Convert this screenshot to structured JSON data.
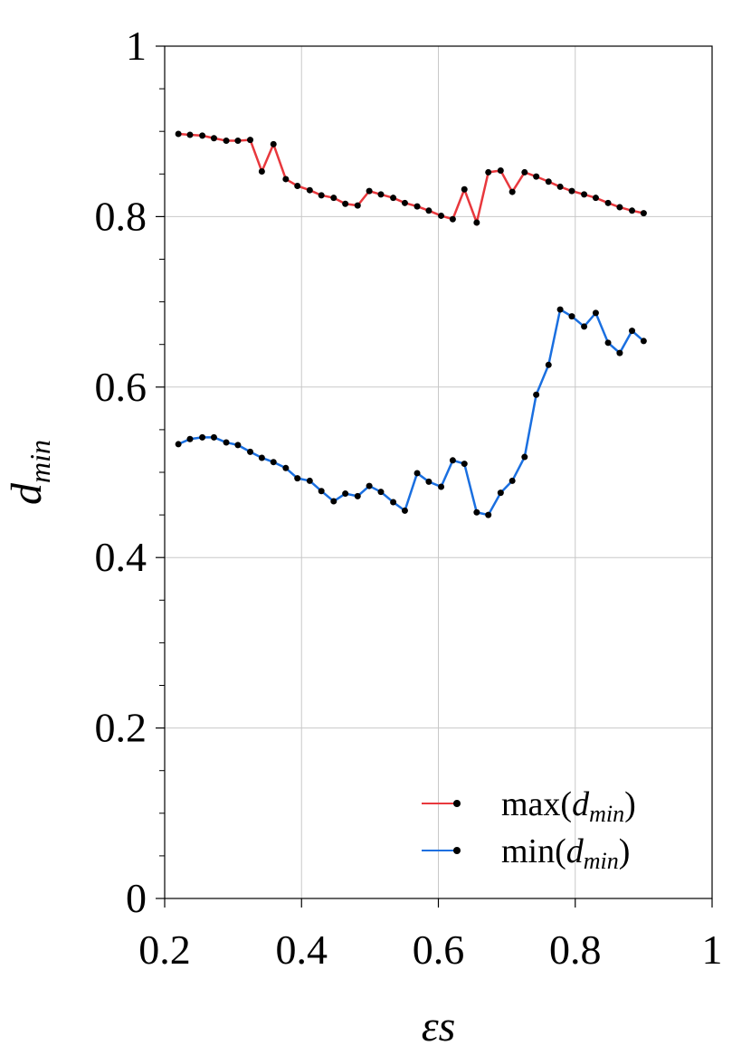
{
  "chart_data": {
    "type": "line",
    "xlabel": [
      "ε",
      "s"
    ],
    "ylabel": [
      "d",
      "min"
    ],
    "x": [
      0.22,
      0.237,
      0.255,
      0.272,
      0.29,
      0.307,
      0.325,
      0.342,
      0.359,
      0.377,
      0.394,
      0.412,
      0.429,
      0.447,
      0.464,
      0.482,
      0.499,
      0.516,
      0.534,
      0.551,
      0.569,
      0.586,
      0.604,
      0.621,
      0.638,
      0.656,
      0.673,
      0.691,
      0.708,
      0.726,
      0.743,
      0.761,
      0.778,
      0.795,
      0.813,
      0.83,
      0.848,
      0.865,
      0.883,
      0.9
    ],
    "series": [
      {
        "name": [
          "max(",
          "d",
          "min",
          ")"
        ],
        "color": "#e8383d",
        "values": [
          0.897,
          0.896,
          0.895,
          0.892,
          0.889,
          0.889,
          0.89,
          0.853,
          0.885,
          0.844,
          0.836,
          0.831,
          0.825,
          0.822,
          0.815,
          0.813,
          0.83,
          0.826,
          0.822,
          0.816,
          0.812,
          0.807,
          0.801,
          0.797,
          0.832,
          0.793,
          0.852,
          0.854,
          0.829,
          0.852,
          0.847,
          0.841,
          0.835,
          0.83,
          0.826,
          0.822,
          0.816,
          0.811,
          0.807,
          0.804
        ]
      },
      {
        "name": [
          "min(",
          "d",
          "min",
          ")"
        ],
        "color": "#1a6fe0",
        "values": [
          0.533,
          0.539,
          0.541,
          0.541,
          0.535,
          0.532,
          0.524,
          0.517,
          0.512,
          0.505,
          0.493,
          0.49,
          0.478,
          0.466,
          0.475,
          0.472,
          0.484,
          0.477,
          0.465,
          0.455,
          0.499,
          0.489,
          0.483,
          0.514,
          0.51,
          0.453,
          0.45,
          0.476,
          0.49,
          0.518,
          0.591,
          0.626,
          0.691,
          0.683,
          0.671,
          0.687,
          0.652,
          0.64,
          0.666,
          0.654
        ]
      }
    ],
    "marker_color": "#000000",
    "xlim": [
      0.2,
      1
    ],
    "xticks": [
      0.2,
      0.4,
      0.6,
      0.8,
      1
    ],
    "ylim": [
      0,
      1
    ],
    "yticks": [
      0,
      0.2,
      0.4,
      0.6,
      0.8,
      1
    ],
    "yminorticks": [
      0.05,
      0.1,
      0.15,
      0.25,
      0.3,
      0.35,
      0.45,
      0.5,
      0.55,
      0.65,
      0.7,
      0.75,
      0.85,
      0.9,
      0.95
    ],
    "grid": true,
    "legend": "lower right"
  }
}
